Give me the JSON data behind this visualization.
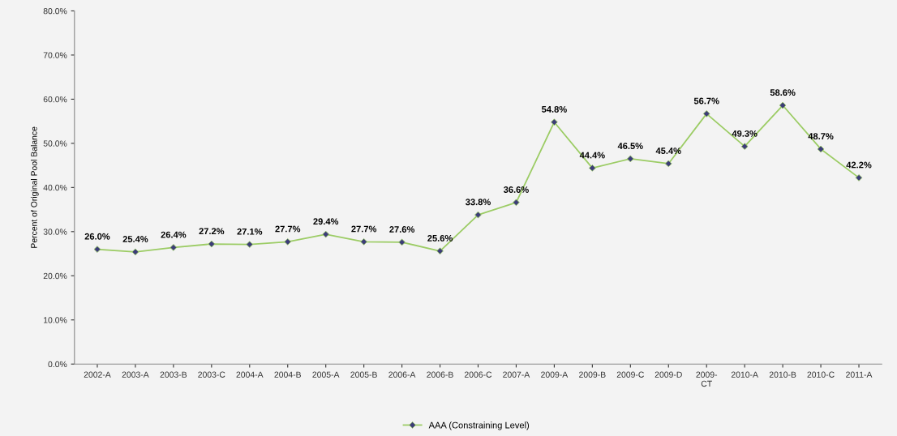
{
  "chart_data": {
    "type": "line",
    "ylabel": "Percent of Original Pool Balance",
    "categories": [
      "2002-A",
      "2003-A",
      "2003-B",
      "2003-C",
      "2004-A",
      "2004-B",
      "2005-A",
      "2005-B",
      "2006-A",
      "2006-B",
      "2006-C",
      "2007-A",
      "2009-A",
      "2009-B",
      "2009-C",
      "2009-D",
      "2009-\nCT",
      "2010-A",
      "2010-B",
      "2010-C",
      "2011-A"
    ],
    "series": [
      {
        "name": "AAA (Constraining Level)",
        "color": "#9ccc65",
        "values": [
          26.0,
          25.4,
          26.4,
          27.2,
          27.1,
          27.7,
          29.4,
          27.7,
          27.6,
          25.6,
          33.8,
          36.6,
          54.8,
          44.4,
          46.5,
          45.4,
          56.7,
          49.3,
          58.6,
          48.7,
          42.2
        ],
        "value_labels": [
          "26.0%",
          "25.4%",
          "26.4%",
          "27.2%",
          "27.1%",
          "27.7%",
          "29.4%",
          "27.7%",
          "27.6%",
          "25.6%",
          "33.8%",
          "36.6%",
          "54.8%",
          "44.4%",
          "46.5%",
          "45.4%",
          "56.7%",
          "49.3%",
          "58.6%",
          "48.7%",
          "42.2%"
        ]
      }
    ],
    "ylim": [
      0,
      80
    ],
    "yticks": [
      {
        "value": 0,
        "label": "0.0%"
      },
      {
        "value": 10,
        "label": "10.0%"
      },
      {
        "value": 20,
        "label": "20.0%"
      },
      {
        "value": 30,
        "label": "30.0%"
      },
      {
        "value": 40,
        "label": "40.0%"
      },
      {
        "value": 50,
        "label": "50.0%"
      },
      {
        "value": 60,
        "label": "60.0%"
      },
      {
        "value": 70,
        "label": "70.0%"
      },
      {
        "value": 80,
        "label": "80.0%"
      }
    ],
    "grid": false,
    "legend": "bottom",
    "marker": "diamond",
    "line_style": "solid"
  }
}
